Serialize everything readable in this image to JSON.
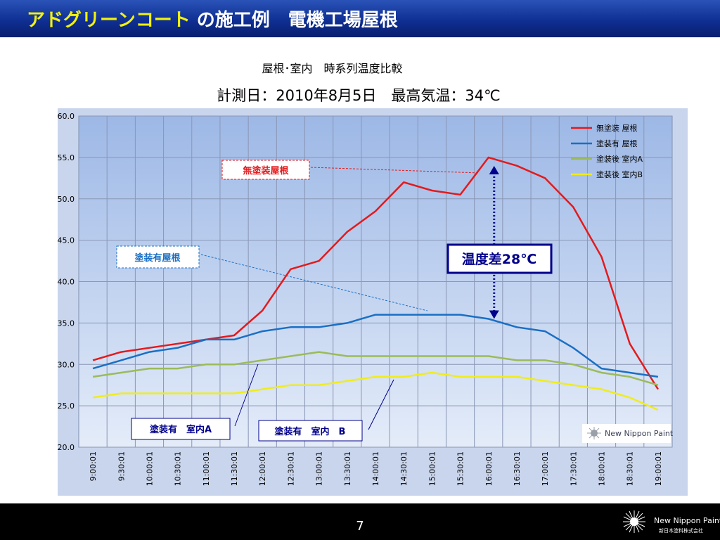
{
  "header": {
    "title_highlight": "アドグリーンコート",
    "title_rest": " の施工例　電機工場屋根"
  },
  "subtitle": "屋根･室内　時系列温度比較",
  "chart_title": "計測日：2010年8月5日　最高気温：34℃",
  "chart_data": {
    "type": "line",
    "x": [
      "9:00:01",
      "9:30:01",
      "10:00:01",
      "10:30:01",
      "11:00:01",
      "11:30:01",
      "12:00:01",
      "12:30:01",
      "13:00:01",
      "13:30:01",
      "14:00:01",
      "14:30:01",
      "15:00:01",
      "15:30:01",
      "16:00:01",
      "16:30:01",
      "17:00:01",
      "17:30:01",
      "18:00:01",
      "18:30:01",
      "19:00:01"
    ],
    "ylim": [
      20,
      60
    ],
    "yticks": [
      "20.0",
      "25.0",
      "30.0",
      "35.0",
      "40.0",
      "45.0",
      "50.0",
      "55.0",
      "60.0"
    ],
    "grid": true,
    "legend_position": "top-right",
    "series": [
      {
        "name": "無塗装 屋根",
        "color": "#e31a1c",
        "values": [
          30.5,
          31.5,
          32.0,
          32.5,
          33.0,
          33.5,
          36.5,
          41.5,
          42.5,
          46.0,
          48.5,
          52.0,
          51.0,
          50.5,
          55.0,
          54.0,
          52.5,
          49.0,
          43.0,
          32.5,
          27.0
        ]
      },
      {
        "name": "塗装有 屋根",
        "color": "#1a6fc4",
        "values": [
          29.5,
          30.5,
          31.5,
          32.0,
          33.0,
          33.0,
          34.0,
          34.5,
          34.5,
          35.0,
          36.0,
          36.0,
          36.0,
          36.0,
          35.5,
          34.5,
          34.0,
          32.0,
          29.5,
          29.0,
          28.5
        ]
      },
      {
        "name": "塗装後 室内A",
        "color": "#9bbb59",
        "values": [
          28.5,
          29.0,
          29.5,
          29.5,
          30.0,
          30.0,
          30.5,
          31.0,
          31.5,
          31.0,
          31.0,
          31.0,
          31.0,
          31.0,
          31.0,
          30.5,
          30.5,
          30.0,
          29.0,
          28.5,
          27.5
        ]
      },
      {
        "name": "塗装後 室内B",
        "color": "#f0ec1c",
        "values": [
          26.0,
          26.5,
          26.5,
          26.5,
          26.5,
          26.5,
          27.0,
          27.5,
          27.5,
          28.0,
          28.5,
          28.5,
          29.0,
          28.5,
          28.5,
          28.5,
          28.0,
          27.5,
          27.0,
          26.0,
          24.5
        ]
      }
    ],
    "annotations": [
      {
        "text": "無塗装屋根",
        "color": "#e31a1c"
      },
      {
        "text": "塗装有屋根",
        "color": "#1a6fc4"
      },
      {
        "text": "塗装有　室内A",
        "color": "#00008b"
      },
      {
        "text": "塗装有　室内　B",
        "color": "#00008b"
      },
      {
        "text": "温度差28℃",
        "color": "#00008b"
      }
    ],
    "watermark": "New Nippon Paint"
  },
  "footer": {
    "page_number": "7",
    "logo_name": "New Nippon Paint",
    "logo_sub": "新日本塗料株式会社"
  }
}
